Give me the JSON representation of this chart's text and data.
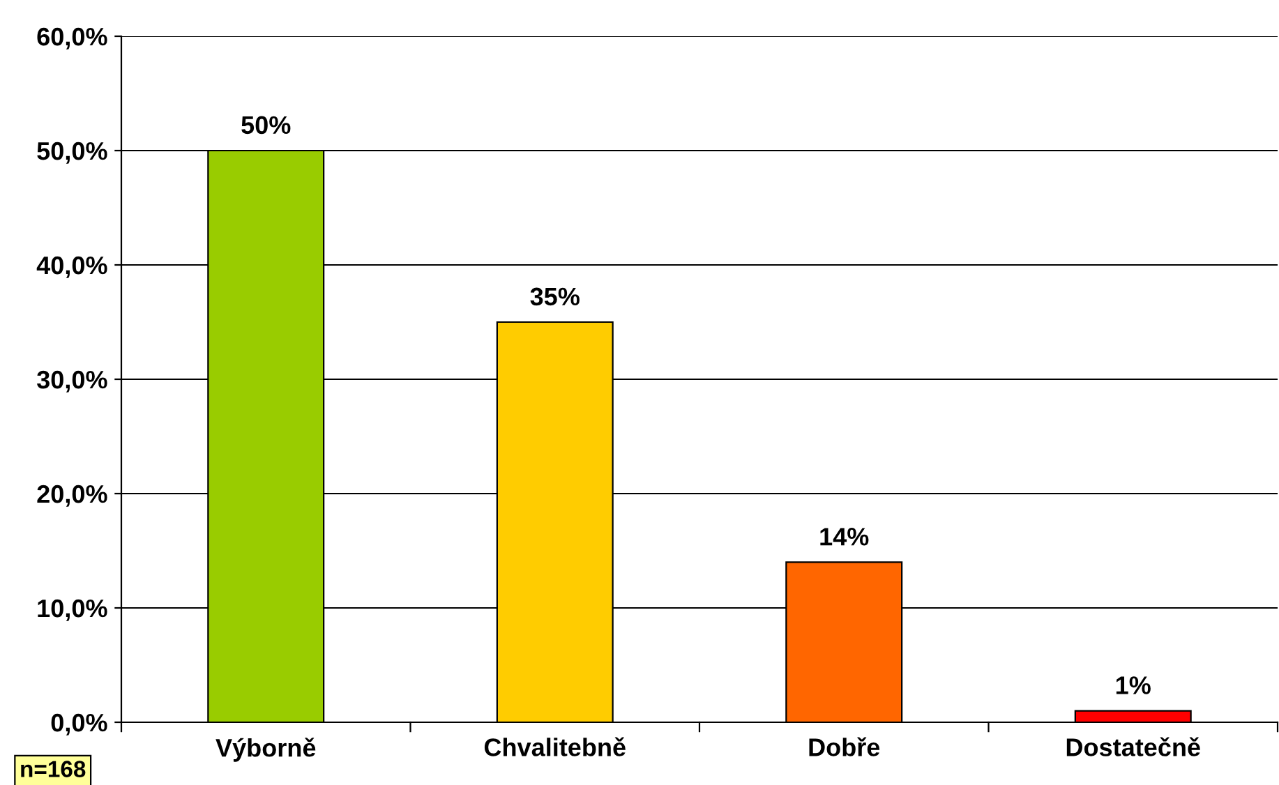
{
  "chart_data": {
    "type": "bar",
    "categories": [
      "Výborně",
      "Chvalitebně",
      "Dobře",
      "Dostatečně"
    ],
    "values": [
      50,
      35,
      14,
      1
    ],
    "colors": [
      "#99cc00",
      "#ffcc00",
      "#ff6600",
      "#ff0000"
    ],
    "value_labels": [
      "50%",
      "35%",
      "14%",
      "1%"
    ],
    "ylim": [
      0,
      60
    ],
    "yticks": [
      {
        "value": 0,
        "label": "0,0%"
      },
      {
        "value": 10,
        "label": "10,0%"
      },
      {
        "value": 20,
        "label": "20,0%"
      },
      {
        "value": 30,
        "label": "30,0%"
      },
      {
        "value": 40,
        "label": "40,0%"
      },
      {
        "value": 50,
        "label": "50,0%"
      },
      {
        "value": 60,
        "label": "60,0%"
      }
    ],
    "grid": "y",
    "legend": false,
    "annotations": [
      "n=168"
    ]
  }
}
